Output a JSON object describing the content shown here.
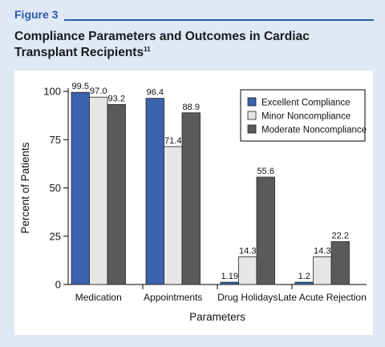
{
  "figure": {
    "label": "Figure 3",
    "title": "Compliance Parameters and Outcomes in Cardiac Transplant Recipients",
    "title_superscript": "11"
  },
  "colors": {
    "excellent": "#3a62ad",
    "minor": "#e6e6e6",
    "moderate": "#5a5a5a",
    "accent": "#2a5aa8",
    "background": "#dfe8f5"
  },
  "chart_data": {
    "type": "bar",
    "categories": [
      "Medication",
      "Appointments",
      "Drug Holidays",
      "Late Acute Rejection"
    ],
    "series": [
      {
        "name": "Excellent Compliance",
        "values": [
          99.5,
          96.4,
          1.19,
          1.2
        ],
        "labels": [
          "99.5",
          "96.4",
          "1.19",
          "1.2"
        ]
      },
      {
        "name": "Minor Noncompliance",
        "values": [
          97.0,
          71.4,
          14.3,
          14.3
        ],
        "labels": [
          "97.0",
          "71.4",
          "14.3",
          "14.3"
        ]
      },
      {
        "name": "Moderate Noncompliance",
        "values": [
          93.2,
          88.9,
          55.6,
          22.2
        ],
        "labels": [
          "93.2",
          "88.9",
          "55.6",
          "22.2"
        ]
      }
    ],
    "xlabel": "Parameters",
    "ylabel": "Percent of Patients",
    "ylim": [
      0,
      100
    ],
    "yticks": [
      0,
      25,
      50,
      75,
      100
    ],
    "grid": false,
    "legend_position": "top-right"
  }
}
